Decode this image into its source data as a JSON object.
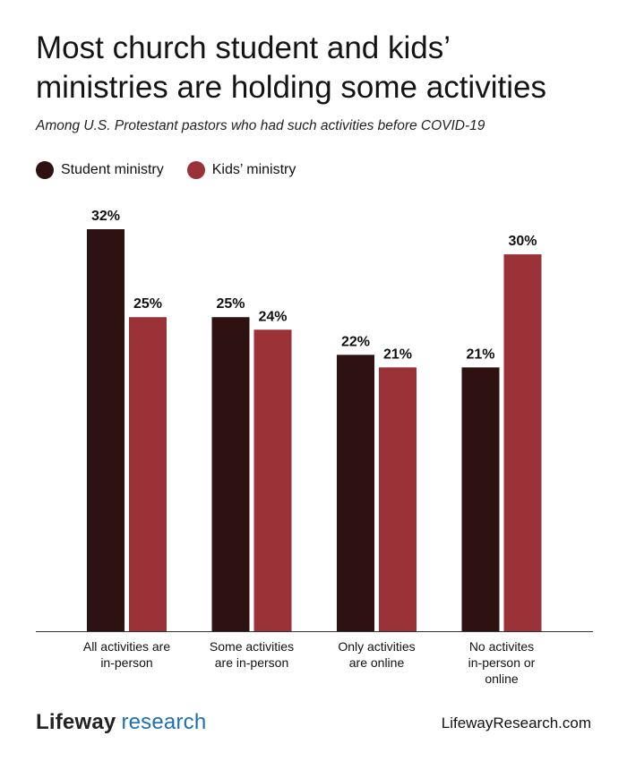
{
  "title_line1": "Most church student and kids’",
  "title_line2": "ministries are holding some activities",
  "subtitle": "Among U.S. Protestant pastors who had such activities before COVID-19",
  "colors": {
    "student": "#2e1212",
    "kids": "#9b3237",
    "axis": "#333333"
  },
  "chart_data": {
    "type": "bar",
    "categories": [
      [
        "All activities are",
        "in-person"
      ],
      [
        "Some activities",
        "are in-person"
      ],
      [
        "Only activities",
        "are online"
      ],
      [
        "No activites",
        "in-person or",
        "online"
      ]
    ],
    "series": [
      {
        "name": "Student ministry",
        "values": [
          32,
          25,
          22,
          21
        ]
      },
      {
        "name": "Kids’ ministry",
        "values": [
          25,
          24,
          21,
          30
        ]
      }
    ],
    "value_suffix": "%",
    "ylim": [
      0,
      32
    ],
    "legend": "top-left",
    "grid": false
  },
  "footer": {
    "brand_a": "Lifeway",
    "brand_b": "research",
    "url": "LifewayResearch.com"
  }
}
